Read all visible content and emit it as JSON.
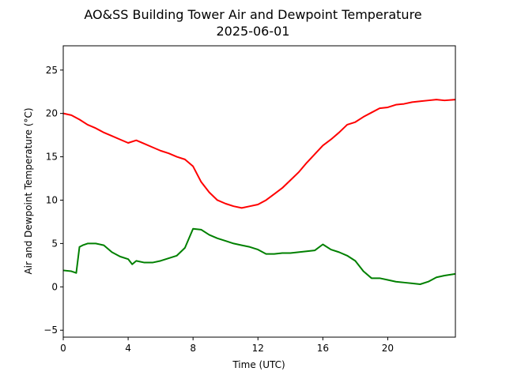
{
  "chart_data": {
    "type": "line",
    "title": "AO&SS Building Tower Air and Dewpoint Temperature",
    "subtitle": "2025-06-01",
    "xlabel": "Time (UTC)",
    "ylabel": "Air and Dewpoint Temperature (°C)",
    "xlim": [
      0,
      24.17
    ],
    "ylim": [
      -5.8,
      27.8
    ],
    "xticks": [
      0,
      4,
      8,
      12,
      16,
      20
    ],
    "yticks": [
      -5,
      0,
      5,
      10,
      15,
      20,
      25
    ],
    "grid": false,
    "series": [
      {
        "color": "#ff0000",
        "x": [
          0,
          0.5,
          1,
          1.5,
          2,
          2.5,
          3,
          3.5,
          4,
          4.5,
          5,
          5.5,
          6,
          6.5,
          7,
          7.5,
          8,
          8.5,
          9,
          9.5,
          10,
          10.5,
          11,
          11.5,
          12,
          12.5,
          13,
          13.5,
          14,
          14.5,
          15,
          15.5,
          16,
          16.5,
          17,
          17.5,
          18,
          18.5,
          19,
          19.5,
          20,
          20.5,
          21,
          21.5,
          22,
          22.5,
          23,
          23.5,
          24.17
        ],
        "y": [
          20.0,
          19.8,
          19.3,
          18.7,
          18.3,
          17.8,
          17.4,
          17.0,
          16.6,
          16.9,
          16.5,
          16.1,
          15.7,
          15.4,
          15.0,
          14.7,
          13.9,
          12.1,
          10.9,
          10.0,
          9.6,
          9.3,
          9.1,
          9.3,
          9.5,
          10.0,
          10.7,
          11.4,
          12.3,
          13.2,
          14.3,
          15.3,
          16.3,
          17.0,
          17.8,
          18.7,
          19.0,
          19.6,
          20.1,
          20.6,
          20.7,
          21.0,
          21.1,
          21.3,
          21.4,
          21.5,
          21.6,
          21.5,
          21.6
        ]
      },
      {
        "color": "#008000",
        "x": [
          0,
          0.5,
          0.8,
          1.0,
          1.2,
          1.5,
          2,
          2.5,
          3,
          3.5,
          4,
          4.25,
          4.5,
          5,
          5.5,
          6,
          6.5,
          7,
          7.5,
          8,
          8.5,
          9,
          9.5,
          10,
          10.5,
          11,
          11.5,
          12,
          12.5,
          13,
          13.5,
          14,
          14.5,
          15,
          15.5,
          16,
          16.5,
          17,
          17.5,
          18,
          18.5,
          19,
          19.5,
          20,
          20.5,
          21,
          21.5,
          22,
          22.5,
          23,
          23.5,
          24.17
        ],
        "y": [
          1.9,
          1.8,
          1.6,
          4.6,
          4.8,
          5.0,
          5.0,
          4.8,
          4.0,
          3.5,
          3.2,
          2.6,
          3.0,
          2.8,
          2.8,
          3.0,
          3.3,
          3.6,
          4.5,
          6.7,
          6.6,
          6.0,
          5.6,
          5.3,
          5.0,
          4.8,
          4.6,
          4.3,
          3.8,
          3.8,
          3.9,
          3.9,
          4.0,
          4.1,
          4.2,
          4.9,
          4.3,
          4.0,
          3.6,
          3.0,
          1.8,
          1.0,
          1.0,
          0.8,
          0.6,
          0.5,
          0.4,
          0.3,
          0.6,
          1.1,
          1.3,
          1.5
        ]
      }
    ]
  }
}
